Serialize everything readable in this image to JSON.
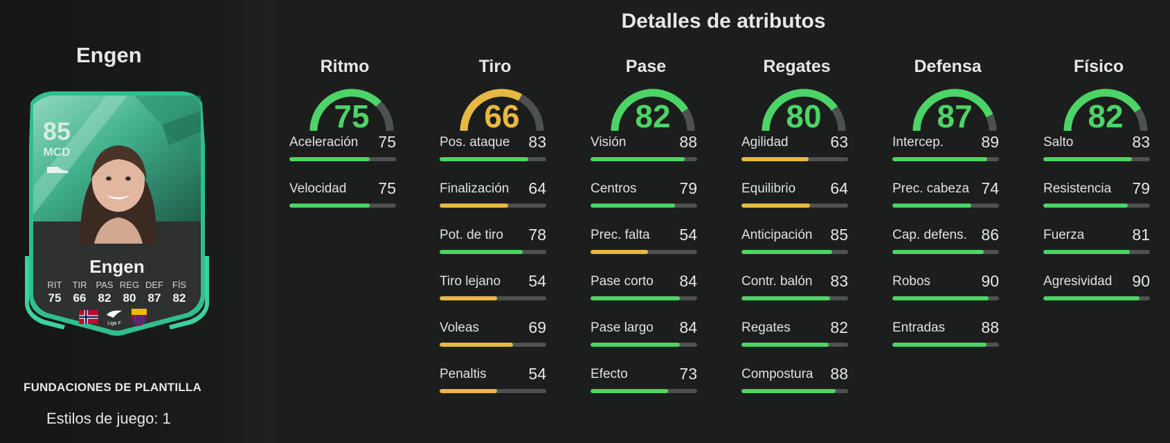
{
  "player": {
    "name": "Engen",
    "card": {
      "rating": "85",
      "position": "MCD",
      "name": "Engen",
      "stats": [
        {
          "label": "RIT",
          "value": "75"
        },
        {
          "label": "TIR",
          "value": "66"
        },
        {
          "label": "PAS",
          "value": "82"
        },
        {
          "label": "REG",
          "value": "80"
        },
        {
          "label": "DEF",
          "value": "87"
        },
        {
          "label": "FÍS",
          "value": "82"
        }
      ],
      "badges": {
        "league_text": "Liga F"
      }
    },
    "promo": "FUNDACIONES DE PLANTILLA",
    "playstyles": "Estilos de juego: 1"
  },
  "title": "Detalles de atributos",
  "colors": {
    "high": "#4cd466",
    "mid": "#e7b943",
    "track": "#4d5150"
  },
  "categories": [
    {
      "name": "Ritmo",
      "value": 75,
      "value_text": "75",
      "attributes": [
        {
          "name": "Aceleración",
          "value": 75,
          "value_text": "75"
        },
        {
          "name": "Velocidad",
          "value": 75,
          "value_text": "75"
        }
      ]
    },
    {
      "name": "Tiro",
      "value": 66,
      "value_text": "66",
      "attributes": [
        {
          "name": "Pos. ataque",
          "value": 83,
          "value_text": "83"
        },
        {
          "name": "Finalización",
          "value": 64,
          "value_text": "64"
        },
        {
          "name": "Pot. de tiro",
          "value": 78,
          "value_text": "78"
        },
        {
          "name": "Tiro lejano",
          "value": 54,
          "value_text": "54"
        },
        {
          "name": "Voleas",
          "value": 69,
          "value_text": "69"
        },
        {
          "name": "Penaltis",
          "value": 54,
          "value_text": "54"
        }
      ]
    },
    {
      "name": "Pase",
      "value": 82,
      "value_text": "82",
      "attributes": [
        {
          "name": "Visión",
          "value": 88,
          "value_text": "88"
        },
        {
          "name": "Centros",
          "value": 79,
          "value_text": "79"
        },
        {
          "name": "Prec. falta",
          "value": 54,
          "value_text": "54"
        },
        {
          "name": "Pase corto",
          "value": 84,
          "value_text": "84"
        },
        {
          "name": "Pase largo",
          "value": 84,
          "value_text": "84"
        },
        {
          "name": "Efecto",
          "value": 73,
          "value_text": "73"
        }
      ]
    },
    {
      "name": "Regates",
      "value": 80,
      "value_text": "80",
      "attributes": [
        {
          "name": "Agilidad",
          "value": 63,
          "value_text": "63"
        },
        {
          "name": "Equilibrio",
          "value": 64,
          "value_text": "64"
        },
        {
          "name": "Anticipación",
          "value": 85,
          "value_text": "85"
        },
        {
          "name": "Contr. balón",
          "value": 83,
          "value_text": "83"
        },
        {
          "name": "Regates",
          "value": 82,
          "value_text": "82"
        },
        {
          "name": "Compostura",
          "value": 88,
          "value_text": "88"
        }
      ]
    },
    {
      "name": "Defensa",
      "value": 87,
      "value_text": "87",
      "attributes": [
        {
          "name": "Intercep.",
          "value": 89,
          "value_text": "89"
        },
        {
          "name": "Prec. cabeza",
          "value": 74,
          "value_text": "74"
        },
        {
          "name": "Cap. defens.",
          "value": 86,
          "value_text": "86"
        },
        {
          "name": "Robos",
          "value": 90,
          "value_text": "90"
        },
        {
          "name": "Entradas",
          "value": 88,
          "value_text": "88"
        }
      ]
    },
    {
      "name": "Físico",
      "value": 82,
      "value_text": "82",
      "attributes": [
        {
          "name": "Salto",
          "value": 83,
          "value_text": "83"
        },
        {
          "name": "Resistencia",
          "value": 79,
          "value_text": "79"
        },
        {
          "name": "Fuerza",
          "value": 81,
          "value_text": "81"
        },
        {
          "name": "Agresividad",
          "value": 90,
          "value_text": "90"
        }
      ]
    }
  ]
}
